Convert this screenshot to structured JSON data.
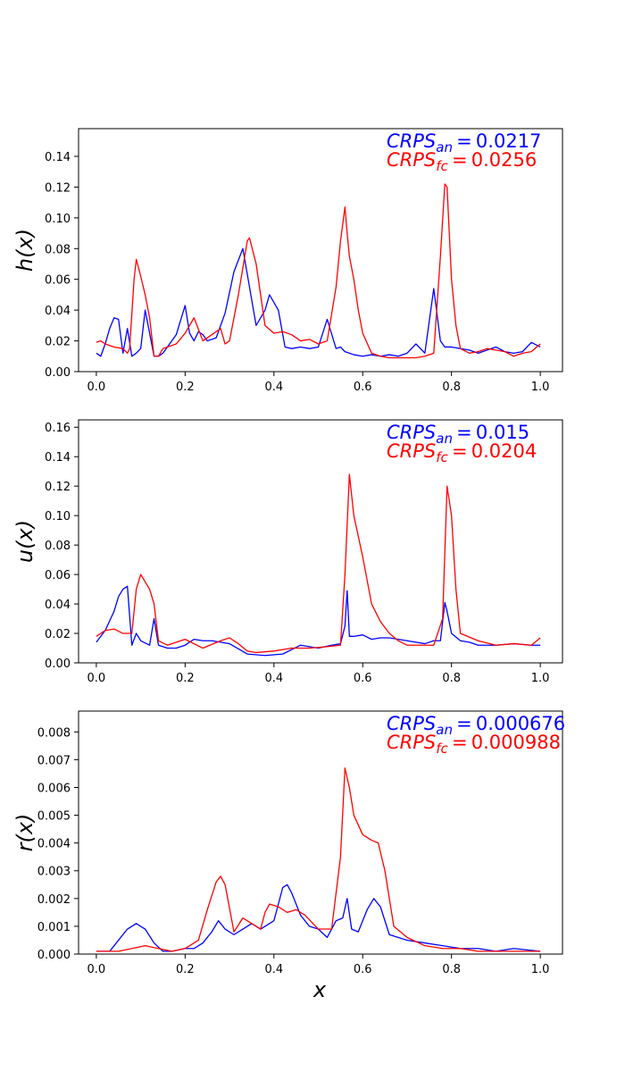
{
  "chart_data": [
    {
      "type": "line",
      "ylabel": "h(x)",
      "xlabel": "",
      "xlim": [
        -0.04,
        1.05
      ],
      "ylim": [
        0,
        0.158
      ],
      "xticks": [
        0.0,
        0.2,
        0.4,
        0.6,
        0.8,
        1.0
      ],
      "xtick_labels": [
        "0.0",
        "0.2",
        "0.4",
        "0.6",
        "0.8",
        "1.0"
      ],
      "yticks": [
        0.0,
        0.02,
        0.04,
        0.06,
        0.08,
        0.1,
        0.12,
        0.14
      ],
      "ytick_labels": [
        "0.00",
        "0.02",
        "0.04",
        "0.06",
        "0.08",
        "0.10",
        "0.12",
        "0.14"
      ],
      "annotations": [
        {
          "name": "CRPS",
          "sub": "an",
          "value": "0.0217",
          "color": "#0000ff"
        },
        {
          "name": "CRPS",
          "sub": "fc",
          "value": "0.0256",
          "color": "#ff0000"
        }
      ],
      "series": [
        {
          "color": "#0000ff",
          "x": [
            0.0,
            0.01,
            0.02,
            0.03,
            0.04,
            0.05,
            0.06,
            0.07,
            0.08,
            0.09,
            0.1,
            0.11,
            0.12,
            0.13,
            0.14,
            0.15,
            0.16,
            0.18,
            0.2,
            0.21,
            0.22,
            0.23,
            0.24,
            0.25,
            0.27,
            0.29,
            0.31,
            0.33,
            0.345,
            0.36,
            0.38,
            0.39,
            0.41,
            0.425,
            0.44,
            0.46,
            0.48,
            0.5,
            0.52,
            0.54,
            0.55,
            0.56,
            0.58,
            0.6,
            0.62,
            0.64,
            0.66,
            0.68,
            0.7,
            0.72,
            0.74,
            0.76,
            0.775,
            0.785,
            0.79,
            0.8,
            0.82,
            0.84,
            0.86,
            0.88,
            0.9,
            0.92,
            0.94,
            0.96,
            0.98,
            1.0
          ],
          "y": [
            0.012,
            0.01,
            0.018,
            0.028,
            0.035,
            0.034,
            0.012,
            0.028,
            0.01,
            0.012,
            0.015,
            0.04,
            0.025,
            0.01,
            0.01,
            0.012,
            0.016,
            0.024,
            0.043,
            0.025,
            0.02,
            0.026,
            0.024,
            0.02,
            0.022,
            0.038,
            0.065,
            0.08,
            0.055,
            0.03,
            0.04,
            0.05,
            0.04,
            0.016,
            0.015,
            0.016,
            0.015,
            0.016,
            0.034,
            0.015,
            0.016,
            0.013,
            0.011,
            0.01,
            0.011,
            0.01,
            0.011,
            0.01,
            0.012,
            0.018,
            0.012,
            0.054,
            0.02,
            0.016,
            0.016,
            0.016,
            0.015,
            0.014,
            0.012,
            0.014,
            0.016,
            0.013,
            0.012,
            0.013,
            0.019,
            0.016
          ]
        },
        {
          "color": "#ff0000",
          "x": [
            0.0,
            0.01,
            0.02,
            0.04,
            0.06,
            0.07,
            0.075,
            0.085,
            0.09,
            0.1,
            0.11,
            0.12,
            0.13,
            0.14,
            0.15,
            0.18,
            0.2,
            0.22,
            0.24,
            0.26,
            0.28,
            0.29,
            0.3,
            0.32,
            0.34,
            0.345,
            0.36,
            0.38,
            0.4,
            0.42,
            0.44,
            0.46,
            0.48,
            0.5,
            0.52,
            0.54,
            0.55,
            0.56,
            0.565,
            0.57,
            0.58,
            0.59,
            0.6,
            0.62,
            0.64,
            0.66,
            0.68,
            0.7,
            0.72,
            0.74,
            0.76,
            0.775,
            0.785,
            0.79,
            0.8,
            0.81,
            0.82,
            0.84,
            0.86,
            0.88,
            0.9,
            0.92,
            0.94,
            0.96,
            0.98,
            1.0
          ],
          "y": [
            0.019,
            0.02,
            0.018,
            0.016,
            0.015,
            0.012,
            0.015,
            0.06,
            0.073,
            0.062,
            0.05,
            0.035,
            0.01,
            0.01,
            0.015,
            0.018,
            0.025,
            0.035,
            0.02,
            0.024,
            0.028,
            0.018,
            0.02,
            0.05,
            0.085,
            0.087,
            0.07,
            0.03,
            0.025,
            0.026,
            0.024,
            0.02,
            0.021,
            0.018,
            0.02,
            0.055,
            0.085,
            0.107,
            0.09,
            0.075,
            0.06,
            0.04,
            0.025,
            0.012,
            0.01,
            0.009,
            0.009,
            0.009,
            0.009,
            0.01,
            0.012,
            0.075,
            0.122,
            0.12,
            0.06,
            0.03,
            0.015,
            0.012,
            0.013,
            0.015,
            0.014,
            0.013,
            0.01,
            0.012,
            0.013,
            0.018
          ]
        }
      ]
    },
    {
      "type": "line",
      "ylabel": "u(x)",
      "xlabel": "",
      "xlim": [
        -0.04,
        1.05
      ],
      "ylim": [
        0,
        0.165
      ],
      "xticks": [
        0.0,
        0.2,
        0.4,
        0.6,
        0.8,
        1.0
      ],
      "xtick_labels": [
        "0.0",
        "0.2",
        "0.4",
        "0.6",
        "0.8",
        "1.0"
      ],
      "yticks": [
        0.0,
        0.02,
        0.04,
        0.06,
        0.08,
        0.1,
        0.12,
        0.14,
        0.16
      ],
      "ytick_labels": [
        "0.00",
        "0.02",
        "0.04",
        "0.06",
        "0.08",
        "0.10",
        "0.12",
        "0.14",
        "0.16"
      ],
      "annotations": [
        {
          "name": "CRPS",
          "sub": "an",
          "value": "0.015",
          "color": "#0000ff"
        },
        {
          "name": "CRPS",
          "sub": "fc",
          "value": "0.0204",
          "color": "#ff0000"
        }
      ],
      "series": [
        {
          "color": "#0000ff",
          "x": [
            0.0,
            0.02,
            0.04,
            0.05,
            0.06,
            0.07,
            0.08,
            0.09,
            0.1,
            0.12,
            0.13,
            0.14,
            0.16,
            0.18,
            0.2,
            0.22,
            0.24,
            0.26,
            0.28,
            0.3,
            0.34,
            0.38,
            0.42,
            0.46,
            0.5,
            0.53,
            0.55,
            0.56,
            0.565,
            0.57,
            0.58,
            0.6,
            0.62,
            0.64,
            0.66,
            0.7,
            0.74,
            0.76,
            0.775,
            0.785,
            0.79,
            0.8,
            0.82,
            0.84,
            0.86,
            0.9,
            0.94,
            0.98,
            1.0
          ],
          "y": [
            0.014,
            0.022,
            0.035,
            0.045,
            0.05,
            0.052,
            0.012,
            0.02,
            0.015,
            0.012,
            0.03,
            0.012,
            0.01,
            0.01,
            0.012,
            0.016,
            0.015,
            0.015,
            0.014,
            0.013,
            0.006,
            0.005,
            0.006,
            0.012,
            0.01,
            0.012,
            0.013,
            0.025,
            0.049,
            0.018,
            0.018,
            0.019,
            0.016,
            0.017,
            0.017,
            0.015,
            0.013,
            0.015,
            0.015,
            0.041,
            0.035,
            0.02,
            0.015,
            0.014,
            0.012,
            0.012,
            0.013,
            0.012,
            0.012
          ]
        },
        {
          "color": "#ff0000",
          "x": [
            0.0,
            0.02,
            0.04,
            0.06,
            0.08,
            0.09,
            0.1,
            0.12,
            0.13,
            0.14,
            0.16,
            0.2,
            0.24,
            0.28,
            0.3,
            0.32,
            0.34,
            0.36,
            0.4,
            0.44,
            0.48,
            0.52,
            0.55,
            0.56,
            0.57,
            0.58,
            0.6,
            0.62,
            0.64,
            0.66,
            0.68,
            0.7,
            0.72,
            0.76,
            0.78,
            0.79,
            0.8,
            0.81,
            0.82,
            0.86,
            0.9,
            0.94,
            0.98,
            1.0
          ],
          "y": [
            0.018,
            0.022,
            0.023,
            0.02,
            0.02,
            0.05,
            0.06,
            0.05,
            0.04,
            0.015,
            0.012,
            0.016,
            0.01,
            0.015,
            0.017,
            0.013,
            0.008,
            0.007,
            0.008,
            0.01,
            0.01,
            0.011,
            0.012,
            0.06,
            0.128,
            0.1,
            0.072,
            0.04,
            0.028,
            0.02,
            0.015,
            0.012,
            0.012,
            0.012,
            0.03,
            0.12,
            0.1,
            0.05,
            0.02,
            0.015,
            0.012,
            0.013,
            0.012,
            0.017
          ]
        }
      ]
    },
    {
      "type": "line",
      "ylabel": "r(x)",
      "xlabel": "x",
      "xlim": [
        -0.04,
        1.05
      ],
      "ylim": [
        0,
        0.00875
      ],
      "xticks": [
        0.0,
        0.2,
        0.4,
        0.6,
        0.8,
        1.0
      ],
      "xtick_labels": [
        "0.0",
        "0.2",
        "0.4",
        "0.6",
        "0.8",
        "1.0"
      ],
      "yticks": [
        0.0,
        0.001,
        0.002,
        0.003,
        0.004,
        0.005,
        0.006,
        0.007,
        0.008
      ],
      "ytick_labels": [
        "0.000",
        "0.001",
        "0.002",
        "0.003",
        "0.004",
        "0.005",
        "0.006",
        "0.007",
        "0.008"
      ],
      "annotations": [
        {
          "name": "CRPS",
          "sub": "an",
          "value": "0.000676",
          "color": "#0000ff"
        },
        {
          "name": "CRPS",
          "sub": "fc",
          "value": "0.000988",
          "color": "#ff0000"
        }
      ],
      "series": [
        {
          "color": "#0000ff",
          "x": [
            0.0,
            0.03,
            0.05,
            0.07,
            0.09,
            0.11,
            0.13,
            0.15,
            0.17,
            0.2,
            0.22,
            0.24,
            0.26,
            0.275,
            0.29,
            0.31,
            0.33,
            0.35,
            0.37,
            0.4,
            0.42,
            0.43,
            0.44,
            0.46,
            0.48,
            0.5,
            0.52,
            0.54,
            0.555,
            0.565,
            0.575,
            0.59,
            0.61,
            0.625,
            0.64,
            0.66,
            0.7,
            0.74,
            0.78,
            0.82,
            0.86,
            0.9,
            0.94,
            1.0
          ],
          "y": [
            0.0001,
            0.0001,
            0.0005,
            0.0009,
            0.0011,
            0.0009,
            0.0004,
            0.0001,
            0.0001,
            0.0002,
            0.0002,
            0.0004,
            0.0008,
            0.0012,
            0.0009,
            0.0007,
            0.0009,
            0.0011,
            0.0009,
            0.0012,
            0.0024,
            0.0025,
            0.0022,
            0.0014,
            0.001,
            0.0009,
            0.0006,
            0.0012,
            0.0013,
            0.002,
            0.0009,
            0.0008,
            0.0016,
            0.002,
            0.0017,
            0.0007,
            0.0005,
            0.0004,
            0.0003,
            0.0002,
            0.0002,
            0.0001,
            0.0002,
            0.0001
          ]
        },
        {
          "color": "#ff0000",
          "x": [
            0.0,
            0.05,
            0.08,
            0.11,
            0.14,
            0.17,
            0.2,
            0.23,
            0.25,
            0.27,
            0.28,
            0.29,
            0.31,
            0.33,
            0.35,
            0.37,
            0.38,
            0.39,
            0.41,
            0.43,
            0.45,
            0.47,
            0.5,
            0.53,
            0.55,
            0.56,
            0.57,
            0.58,
            0.6,
            0.62,
            0.635,
            0.65,
            0.67,
            0.7,
            0.74,
            0.78,
            0.82,
            0.86,
            0.9,
            0.94,
            1.0
          ],
          "y": [
            0.0001,
            0.0001,
            0.0002,
            0.0003,
            0.0002,
            0.0001,
            0.0002,
            0.0005,
            0.0016,
            0.0026,
            0.0028,
            0.0025,
            0.0008,
            0.0013,
            0.0011,
            0.0009,
            0.0015,
            0.0018,
            0.0017,
            0.0015,
            0.0016,
            0.0014,
            0.0009,
            0.0009,
            0.0035,
            0.0067,
            0.006,
            0.005,
            0.0043,
            0.0041,
            0.004,
            0.003,
            0.001,
            0.0006,
            0.0003,
            0.0002,
            0.0002,
            0.0001,
            0.0001,
            0.0001,
            0.0001
          ]
        }
      ]
    }
  ]
}
